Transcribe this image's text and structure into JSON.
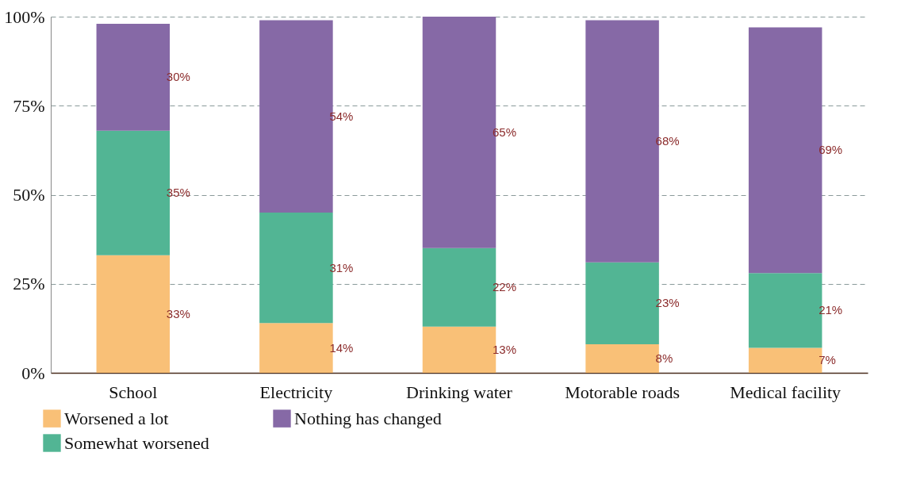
{
  "chart_data": {
    "type": "bar",
    "stacked": true,
    "categories": [
      "School",
      "Electricity",
      "Drinking water",
      "Motorable roads",
      "Medical facility"
    ],
    "series": [
      {
        "name": "Worsened a lot",
        "color": "#f9c077",
        "values": [
          33,
          14,
          13,
          8,
          7
        ],
        "value_labels": [
          "33%",
          "14%",
          "13%",
          "8%",
          "7%"
        ]
      },
      {
        "name": "Somewhat worsened",
        "color": "#52b594",
        "values": [
          35,
          31,
          22,
          23,
          21
        ],
        "value_labels": [
          "35%",
          "31%",
          "22%",
          "23%",
          "21%"
        ]
      },
      {
        "name": "Nothing has changed",
        "color": "#8669a6",
        "values": [
          30,
          54,
          65,
          68,
          69
        ],
        "value_labels": [
          "30%",
          "54%",
          "65%",
          "68%",
          "69%"
        ]
      }
    ],
    "ylim": [
      0,
      100
    ],
    "yticks": [
      {
        "value": 0,
        "label": "0%"
      },
      {
        "value": 25,
        "label": "25%"
      },
      {
        "value": 50,
        "label": "50%"
      },
      {
        "value": 75,
        "label": "75%"
      },
      {
        "value": 100,
        "label": "100%"
      }
    ],
    "grid": "y",
    "legend": "bottom left"
  }
}
